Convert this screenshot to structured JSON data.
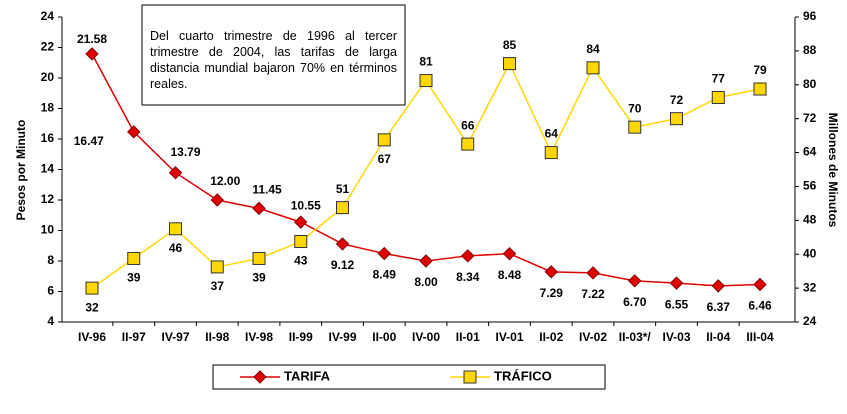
{
  "chart_data": {
    "type": "line",
    "annotation": "Del cuarto trimestre de 1996 al tercer trimestre de 2004, las tarifas de larga distancia mundial bajaron 70% en términos reales.",
    "y_label": "Pesos por Minuto",
    "y2_label": "Millones de Minutos",
    "categories": [
      "IV-96",
      "II-97",
      "IV-97",
      "II-98",
      "IV-98",
      "II-99",
      "IV-99",
      "II-00",
      "IV-00",
      "II-01",
      "IV-01",
      "II-02",
      "IV-02",
      "II-03*/",
      "IV-03",
      "II-04",
      "III-04"
    ],
    "series": [
      {
        "name": "TARIFA",
        "color": "#e00000",
        "marker": "diamond",
        "values": [
          21.58,
          16.47,
          13.79,
          12.0,
          11.45,
          10.55,
          9.12,
          8.49,
          8.0,
          8.34,
          8.48,
          7.29,
          7.22,
          6.7,
          6.55,
          6.37,
          6.46
        ],
        "value_labels": [
          "21.58",
          "16.47",
          "13.79",
          "12.00",
          "11.45",
          "10.55",
          "9.12",
          "8.49",
          "8.00",
          "8.34",
          "8.48",
          "7.29",
          "7.22",
          "6.70",
          "6.55",
          "6.37",
          "6.46"
        ]
      },
      {
        "name": "TRÁFICO",
        "color": "#ffd700",
        "marker": "square",
        "axis": "y2",
        "values": [
          32,
          39,
          46,
          37,
          39,
          43,
          51,
          67,
          81,
          66,
          85,
          64,
          84,
          70,
          72,
          77,
          79
        ]
      }
    ],
    "ylim": [
      4,
      24
    ],
    "yticks": [
      4,
      6,
      8,
      10,
      12,
      14,
      16,
      18,
      20,
      22,
      24
    ],
    "y2lim": [
      24,
      96
    ],
    "y2ticks": [
      24,
      32,
      40,
      48,
      56,
      64,
      72,
      80,
      88,
      96
    ],
    "legend": "bottom"
  }
}
